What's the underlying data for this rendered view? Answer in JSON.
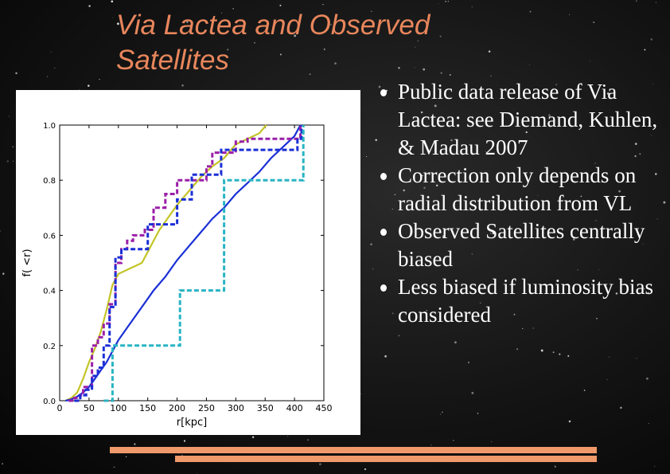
{
  "slide": {
    "title": "Via Lactea and Observed Satellites",
    "bullets": [
      "Public data release of Via Lactea: see Diemand, Kuhlen, & Madau 2007",
      "Correction only depends on radial distribution from VL",
      "Observed Satellites centrally biased",
      "Less biased if luminosity bias considered"
    ],
    "accent_color": "#f0996a"
  },
  "chart_data": {
    "type": "line",
    "title": "",
    "xlabel": "r[kpc]",
    "ylabel": "f( <r)",
    "xlim": [
      0,
      450
    ],
    "ylim": [
      0,
      1.0
    ],
    "xticks": [
      0,
      50,
      100,
      150,
      200,
      250,
      300,
      350,
      400,
      450
    ],
    "yticks": [
      0.0,
      0.2,
      0.4,
      0.6,
      0.8,
      1.0
    ],
    "grid": false,
    "series": [
      {
        "color": "#c4c428",
        "style": "solid",
        "step": false,
        "x": [
          10,
          20,
          30,
          40,
          50,
          60,
          70,
          80,
          90,
          100,
          110,
          120,
          130,
          140,
          150,
          160,
          170,
          180,
          190,
          200,
          220,
          240,
          260,
          280,
          300,
          320,
          340,
          352
        ],
        "y": [
          0,
          0.01,
          0.03,
          0.08,
          0.14,
          0.19,
          0.25,
          0.33,
          0.42,
          0.46,
          0.47,
          0.48,
          0.49,
          0.5,
          0.54,
          0.58,
          0.62,
          0.65,
          0.68,
          0.71,
          0.76,
          0.81,
          0.85,
          0.88,
          0.93,
          0.95,
          0.97,
          1.0
        ]
      },
      {
        "color": "#1a2fd6",
        "style": "solid",
        "step": false,
        "x": [
          10,
          20,
          30,
          40,
          50,
          60,
          70,
          80,
          90,
          100,
          120,
          140,
          160,
          180,
          200,
          220,
          240,
          260,
          280,
          300,
          320,
          340,
          360,
          380,
          400,
          410
        ],
        "y": [
          0,
          0.005,
          0.015,
          0.03,
          0.05,
          0.08,
          0.11,
          0.14,
          0.18,
          0.22,
          0.28,
          0.34,
          0.4,
          0.45,
          0.51,
          0.56,
          0.61,
          0.66,
          0.7,
          0.75,
          0.79,
          0.83,
          0.88,
          0.92,
          0.96,
          1.0
        ]
      },
      {
        "color": "#9b1fa8",
        "style": "dashed",
        "step": true,
        "x": [
          15,
          25,
          35,
          40,
          55,
          65,
          75,
          85,
          95,
          105,
          115,
          125,
          135,
          145,
          160,
          180,
          200,
          220,
          240,
          250,
          260,
          270,
          280,
          300,
          320,
          340,
          360,
          380,
          400,
          410
        ],
        "y": [
          0,
          0.01,
          0.02,
          0.05,
          0.2,
          0.23,
          0.28,
          0.35,
          0.5,
          0.55,
          0.58,
          0.6,
          0.6,
          0.62,
          0.7,
          0.75,
          0.8,
          0.8,
          0.8,
          0.85,
          0.9,
          0.9,
          0.9,
          0.94,
          0.95,
          0.95,
          0.95,
          0.95,
          0.95,
          1.0
        ]
      },
      {
        "color": "#1a2fd6",
        "style": "dashed",
        "step": true,
        "x": [
          25,
          35,
          45,
          55,
          65,
          75,
          85,
          95,
          105,
          135,
          150,
          175,
          200,
          225,
          255,
          275,
          285,
          300,
          350,
          380,
          405,
          412
        ],
        "y": [
          0,
          0.02,
          0.04,
          0.09,
          0.12,
          0.2,
          0.34,
          0.52,
          0.55,
          0.55,
          0.64,
          0.64,
          0.73,
          0.82,
          0.82,
          0.91,
          0.91,
          0.91,
          0.91,
          0.91,
          0.95,
          1.0
        ]
      },
      {
        "color": "#28b4c4",
        "style": "dashed",
        "step": true,
        "x": [
          75,
          90,
          205,
          280,
          408,
          415
        ],
        "y": [
          0,
          0.2,
          0.4,
          0.8,
          0.8,
          1.0
        ]
      }
    ]
  }
}
